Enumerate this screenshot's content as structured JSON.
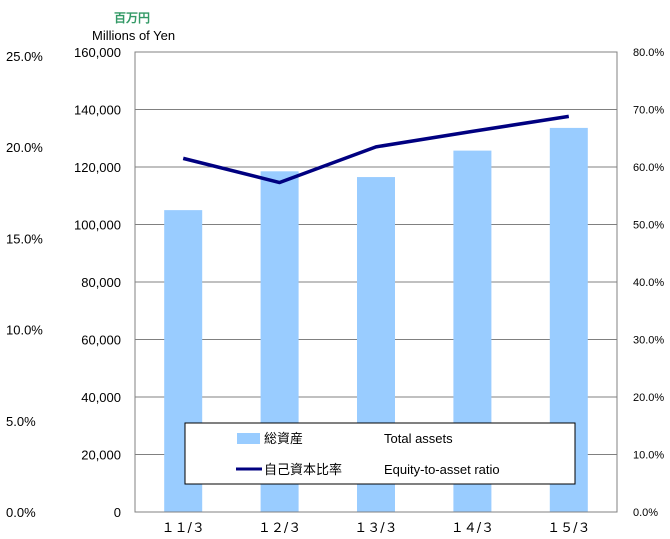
{
  "chart_data": {
    "type": "bar",
    "unit_label_jp": "百万円",
    "unit_label_en": "Millions of Yen",
    "categories": [
      "１１/３",
      "１２/３",
      "１３/３",
      "１４/３",
      "１５/３"
    ],
    "series": [
      {
        "name": "総資産",
        "name_en": "Total assets",
        "type": "bar",
        "axis": "left",
        "values": [
          105000,
          118500,
          116500,
          125700,
          133600
        ]
      },
      {
        "name": "自己資本比率",
        "name_en": "Equity-to-asset ratio",
        "type": "line",
        "axis": "right",
        "values": [
          61.5,
          57.3,
          63.5,
          66.2,
          68.8
        ]
      }
    ],
    "left_axis": {
      "ylim": [
        0,
        160000
      ],
      "ticks": [
        0,
        20000,
        40000,
        60000,
        80000,
        100000,
        120000,
        140000,
        160000
      ],
      "tick_labels": [
        "0",
        "20,000",
        "40,000",
        "60,000",
        "80,000",
        "100,000",
        "120,000",
        "140,000",
        "160,000"
      ]
    },
    "right_axis": {
      "ylim": [
        0,
        80
      ],
      "tick_labels": [
        "0.0%",
        "10.0%",
        "20.0%",
        "30.0%",
        "40.0%",
        "50.0%",
        "60.0%",
        "70.0%",
        "80.0%"
      ]
    },
    "far_left_axis": {
      "tick_labels": [
        "0.0%",
        "5.0%",
        "10.0%",
        "15.0%",
        "20.0%",
        "25.0%"
      ]
    },
    "grid": true,
    "legend_position": "bottom-center inside",
    "colors": {
      "bar": "#99ccff",
      "line": "#000080",
      "unit_jp": "#339966"
    }
  }
}
